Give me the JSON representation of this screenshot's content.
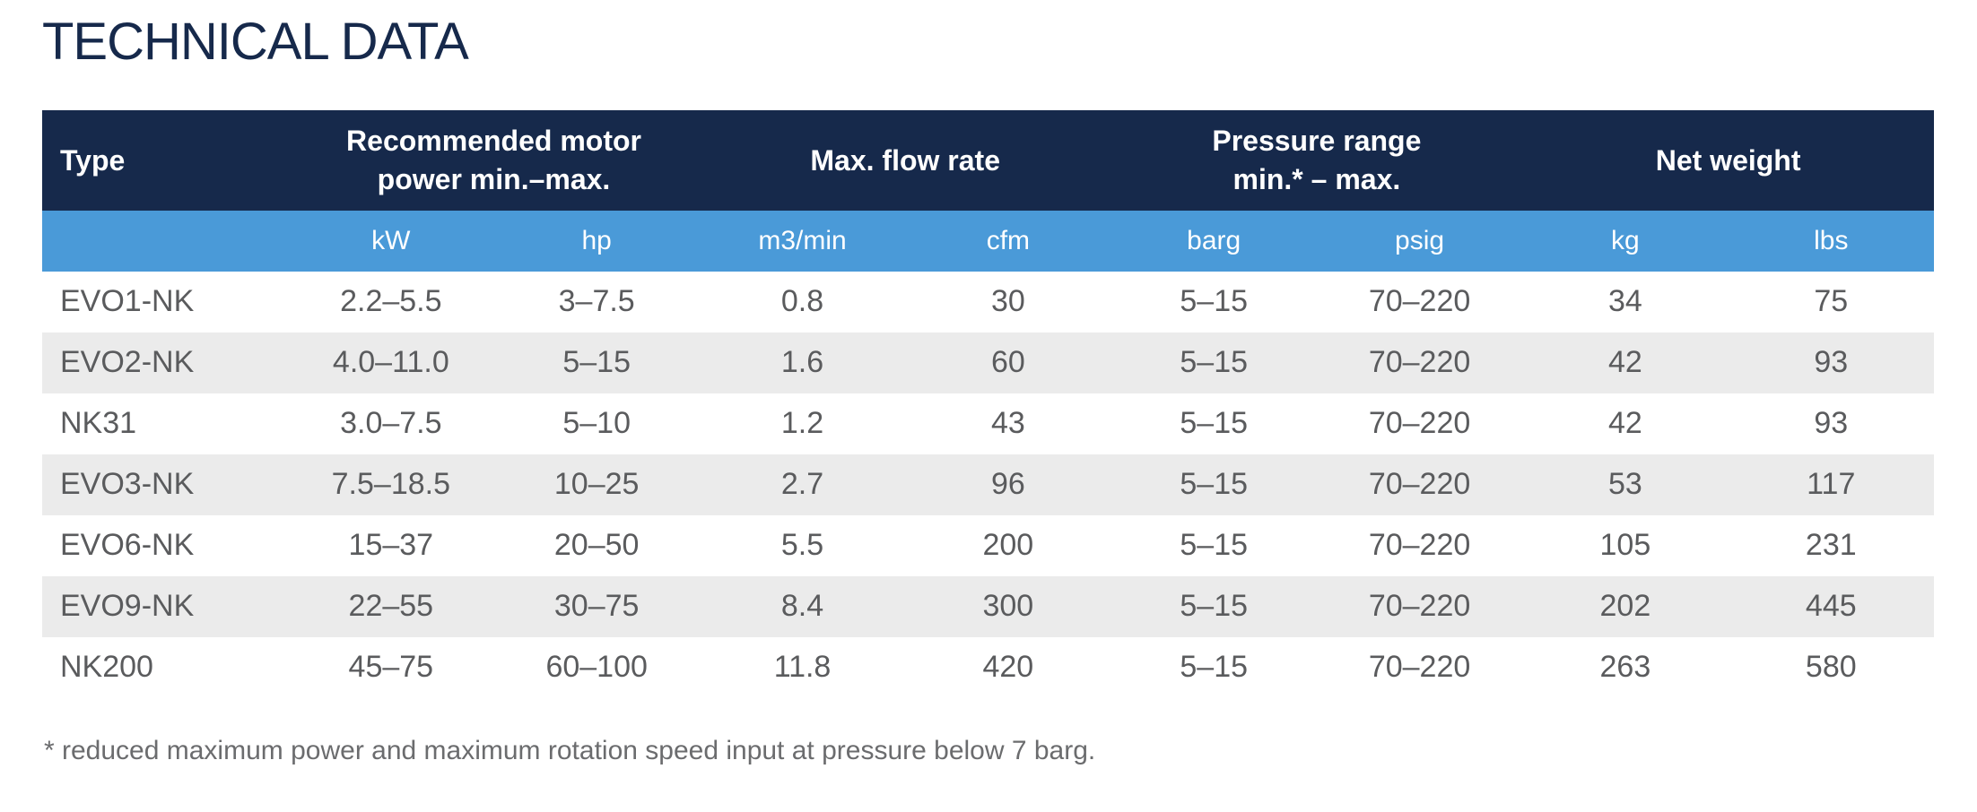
{
  "page": {
    "title": "TECHNICAL DATA"
  },
  "colors": {
    "header_navy": "#16294b",
    "unit_row_blue": "#4a9ad8",
    "zebra_gray": "#ebebeb",
    "body_text_gray": "#5a5b5d",
    "title_navy": "#16294b"
  },
  "table": {
    "group_headers": [
      {
        "label": "Type",
        "colspan": 1,
        "name": "col-header-type"
      },
      {
        "label": "Recommended motor\npower min.–max.",
        "colspan": 2,
        "name": "col-header-motor-power"
      },
      {
        "label": "Max. flow rate",
        "colspan": 2,
        "name": "col-header-flow-rate"
      },
      {
        "label": "Pressure range\nmin.* – max.",
        "colspan": 2,
        "name": "col-header-pressure-range"
      },
      {
        "label": "Net weight",
        "colspan": 2,
        "name": "col-header-net-weight"
      }
    ],
    "unit_headers": [
      "",
      "kW",
      "hp",
      "m3/min",
      "cfm",
      "barg",
      "psig",
      "kg",
      "lbs"
    ],
    "rows": [
      [
        "EVO1-NK",
        "2.2–5.5",
        "3–7.5",
        "0.8",
        "30",
        "5–15",
        "70–220",
        "34",
        "75"
      ],
      [
        "EVO2-NK",
        "4.0–11.0",
        "5–15",
        "1.6",
        "60",
        "5–15",
        "70–220",
        "42",
        "93"
      ],
      [
        "NK31",
        "3.0–7.5",
        "5–10",
        "1.2",
        "43",
        "5–15",
        "70–220",
        "42",
        "93"
      ],
      [
        "EVO3-NK",
        "7.5–18.5",
        "10–25",
        "2.7",
        "96",
        "5–15",
        "70–220",
        "53",
        "117"
      ],
      [
        "EVO6-NK",
        "15–37",
        "20–50",
        "5.5",
        "200",
        "5–15",
        "70–220",
        "105",
        "231"
      ],
      [
        "EVO9-NK",
        "22–55",
        "30–75",
        "8.4",
        "300",
        "5–15",
        "70–220",
        "202",
        "445"
      ],
      [
        "NK200",
        "45–75",
        "60–100",
        "11.8",
        "420",
        "5–15",
        "70–220",
        "263",
        "580"
      ]
    ]
  },
  "footnote": "* reduced maximum power and maximum rotation speed input at pressure below 7 barg."
}
